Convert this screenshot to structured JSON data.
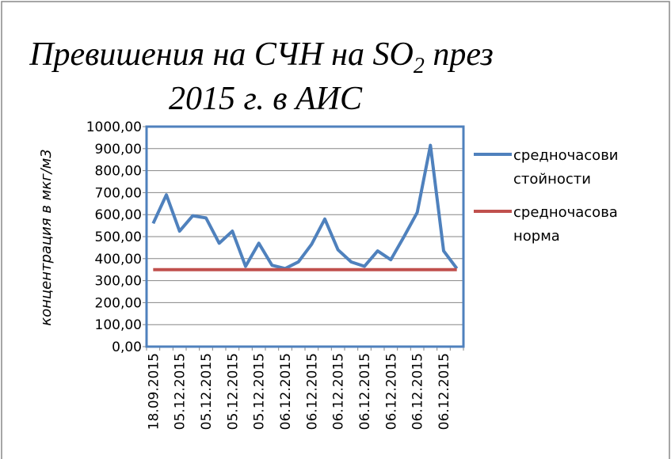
{
  "chart_data": {
    "type": "line",
    "title": [
      "Превишения на СЧН на SO",
      "2",
      " през",
      "2015 г. в АИС"
    ],
    "y_label": "концентрация в мкг/м3",
    "categories": [
      "18.09.2015",
      null,
      "05.12.2015",
      null,
      "05.12.2015",
      null,
      "05.12.2015",
      null,
      "05.12.2015",
      null,
      "06.12.2015",
      null,
      "06.12.2015",
      null,
      "06.12.2015",
      null,
      "06.12.2015",
      null,
      "06.12.2015",
      null,
      "06.12.2015",
      null,
      "06.12.2015",
      null
    ],
    "series": [
      {
        "name": "средночасови стойности",
        "color": "#4f81bd",
        "values": [
          560,
          690,
          525,
          595,
          585,
          470,
          525,
          365,
          470,
          370,
          355,
          385,
          465,
          580,
          440,
          385,
          365,
          435,
          395,
          500,
          610,
          915,
          435,
          355
        ]
      },
      {
        "name": "средночасова норма",
        "color": "#c0504d",
        "values": [
          350,
          350,
          350,
          350,
          350,
          350,
          350,
          350,
          350,
          350,
          350,
          350,
          350,
          350,
          350,
          350,
          350,
          350,
          350,
          350,
          350,
          350,
          350,
          350
        ]
      }
    ],
    "ylim": [
      0,
      1000
    ],
    "yticks": [
      {
        "value": 0,
        "label": "0,00"
      },
      {
        "value": 100,
        "label": "100,00"
      },
      {
        "value": 200,
        "label": "200,00"
      },
      {
        "value": 300,
        "label": "300,00"
      },
      {
        "value": 400,
        "label": "400,00"
      },
      {
        "value": 500,
        "label": "500,00"
      },
      {
        "value": 600,
        "label": "600,00"
      },
      {
        "value": 700,
        "label": "700,00"
      },
      {
        "value": 800,
        "label": "800,00"
      },
      {
        "value": 900,
        "label": "900,00"
      },
      {
        "value": 1000,
        "label": "1000,00"
      }
    ],
    "grid": true,
    "legend": "right"
  }
}
